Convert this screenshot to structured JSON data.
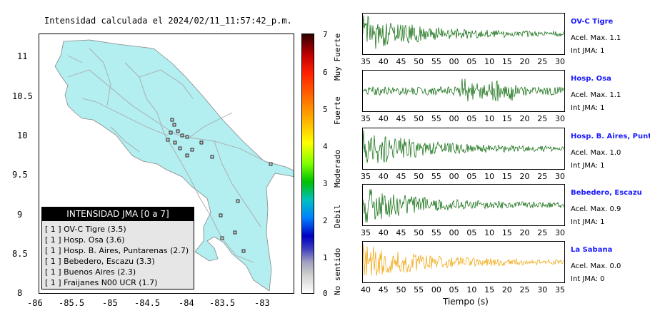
{
  "map": {
    "title": "Intensidad calculada el 2024/02/11_11:57:42_p.m.",
    "x_ticks": [
      "-86",
      "-85.5",
      "-85",
      "-84.5",
      "-84",
      "-83.5",
      "-83"
    ],
    "y_ticks": [
      "11",
      "10.5",
      "10",
      "9.5",
      "9",
      "8.5",
      "8"
    ]
  },
  "legend": {
    "header": "INTENSIDAD JMA [0 a 7]",
    "items": [
      {
        "level": "[ 1 ]",
        "label": "OV-C Tigre (3.5)"
      },
      {
        "level": "[ 1 ]",
        "label": "Hosp. Osa (3.6)"
      },
      {
        "level": "[ 1 ]",
        "label": "Hosp. B. Aires, Puntarenas (2.7)"
      },
      {
        "level": "[ 1 ]",
        "label": "Bebedero, Escazu (3.3)"
      },
      {
        "level": "[ 1 ]",
        "label": "Buenos Aires (2.3)"
      },
      {
        "level": "[ 1 ]",
        "label": "Fraijanes N00 UCR (1.7)"
      }
    ]
  },
  "colorbar": {
    "ticks": [
      "7",
      "6",
      "5",
      "4",
      "3",
      "2",
      "1",
      "0"
    ],
    "words": [
      "Muy Fuerte",
      "Fuerte",
      "Moderado",
      "Debil",
      "No sentido"
    ]
  },
  "waveforms": [
    {
      "name": "OV-C Tigre",
      "acel": "Acel. Max. 1.1",
      "jma": "Int JMA: 1",
      "color": "#006400",
      "ticks": [
        "35",
        "40",
        "45",
        "50",
        "55",
        "00",
        "05",
        "10",
        "15",
        "20",
        "25",
        "30"
      ]
    },
    {
      "name": "Hosp. Osa",
      "acel": "Acel. Max. 1.1",
      "jma": "Int JMA: 1",
      "color": "#006400",
      "ticks": [
        "35",
        "40",
        "45",
        "50",
        "55",
        "00",
        "05",
        "10",
        "15",
        "20",
        "25",
        "30"
      ]
    },
    {
      "name": "Hosp. B. Aires, Puntare",
      "acel": "Acel. Max. 1.0",
      "jma": "Int JMA: 1",
      "color": "#006400",
      "ticks": [
        "35",
        "40",
        "45",
        "50",
        "55",
        "00",
        "05",
        "10",
        "15",
        "20",
        "25",
        "30"
      ]
    },
    {
      "name": "Bebedero, Escazu",
      "acel": "Acel. Max. 0.9",
      "jma": "Int JMA: 1",
      "color": "#006400",
      "ticks": [
        "35",
        "40",
        "45",
        "50",
        "55",
        "00",
        "05",
        "10",
        "15",
        "20",
        "25",
        "30"
      ]
    },
    {
      "name": "La Sabana",
      "acel": "Acel. Max. 0.0",
      "jma": "Int JMA: 0",
      "color": "#f0a000",
      "ticks": [
        "40",
        "45",
        "50",
        "55",
        "00",
        "05",
        "10",
        "15",
        "20",
        "25",
        "30",
        "35"
      ]
    }
  ],
  "xaxis_title": "Tiempo (s)",
  "chart_data": [
    {
      "type": "scatter",
      "title": "Intensidad calculada el 2024/02/11_11:57:42_p.m.",
      "xlabel": "",
      "ylabel": "",
      "xlim": [
        -86,
        -82.5
      ],
      "ylim": [
        8,
        11.3
      ],
      "series": [
        {
          "values": [
            {
              "x": -84.05,
              "y": 10.05
            },
            {
              "x": -84.1,
              "y": 9.95
            },
            {
              "x": -84.15,
              "y": 10.0
            },
            {
              "x": -84.0,
              "y": 9.98
            },
            {
              "x": -83.95,
              "y": 9.95
            },
            {
              "x": -84.2,
              "y": 9.9
            },
            {
              "x": -84.12,
              "y": 9.85
            },
            {
              "x": -84.05,
              "y": 9.82
            },
            {
              "x": -83.92,
              "y": 9.72
            },
            {
              "x": -84.0,
              "y": 9.65
            },
            {
              "x": -84.18,
              "y": 10.12
            },
            {
              "x": -83.85,
              "y": 9.88
            },
            {
              "x": -83.65,
              "y": 9.7
            },
            {
              "x": -83.5,
              "y": 9.0
            },
            {
              "x": -83.32,
              "y": 8.85
            },
            {
              "x": -83.48,
              "y": 8.65
            },
            {
              "x": -83.18,
              "y": 8.45
            },
            {
              "x": -83.0,
              "y": 9.62
            },
            {
              "x": -83.25,
              "y": 9.0
            }
          ]
        }
      ]
    },
    {
      "type": "line",
      "title": "OV-C Tigre",
      "xlabel": "",
      "ylabel": "",
      "categories": [
        "35",
        "40",
        "45",
        "50",
        "55",
        "00",
        "05",
        "10",
        "15",
        "20",
        "25",
        "30"
      ],
      "annotations": [
        "Acel. Max. 1.1",
        "Int JMA: 1"
      ]
    },
    {
      "type": "line",
      "title": "Hosp. Osa",
      "categories": [
        "35",
        "40",
        "45",
        "50",
        "55",
        "00",
        "05",
        "10",
        "15",
        "20",
        "25",
        "30"
      ],
      "annotations": [
        "Acel. Max. 1.1",
        "Int JMA: 1"
      ]
    },
    {
      "type": "line",
      "title": "Hosp. B. Aires, Puntare",
      "categories": [
        "35",
        "40",
        "45",
        "50",
        "55",
        "00",
        "05",
        "10",
        "15",
        "20",
        "25",
        "30"
      ],
      "annotations": [
        "Acel. Max. 1.0",
        "Int JMA: 1"
      ]
    },
    {
      "type": "line",
      "title": "Bebedero, Escazu",
      "categories": [
        "35",
        "40",
        "45",
        "50",
        "55",
        "00",
        "05",
        "10",
        "15",
        "20",
        "25",
        "30"
      ],
      "annotations": [
        "Acel. Max. 0.9",
        "Int JMA: 1"
      ]
    },
    {
      "type": "line",
      "title": "La Sabana",
      "xlabel": "Tiempo (s)",
      "categories": [
        "40",
        "45",
        "50",
        "55",
        "00",
        "05",
        "10",
        "15",
        "20",
        "25",
        "30",
        "35"
      ],
      "annotations": [
        "Acel. Max. 0.0",
        "Int JMA: 0"
      ]
    }
  ]
}
